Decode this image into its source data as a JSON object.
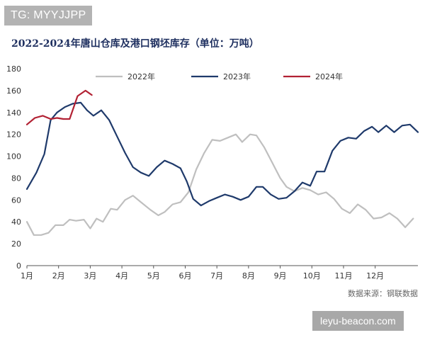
{
  "watermark_top": "TG: MYYJJPP",
  "watermark_bottom": "leyu-beacon.com",
  "chart_data": {
    "type": "line",
    "title": "2022-2024年唐山仓库及港口钢坯库存（单位：万吨）",
    "source": "数据来源：钢联数据",
    "xlabel": "",
    "ylabel": "",
    "xlim": [
      0,
      12
    ],
    "ylim": [
      0,
      180
    ],
    "yticks": [
      0,
      20,
      40,
      60,
      80,
      100,
      120,
      140,
      160,
      180
    ],
    "xticks": [
      {
        "label": "1月",
        "x": 0
      },
      {
        "label": "2月",
        "x": 1
      },
      {
        "label": "3月",
        "x": 2
      },
      {
        "label": "4月",
        "x": 3
      },
      {
        "label": "5月",
        "x": 4
      },
      {
        "label": "6月",
        "x": 5
      },
      {
        "label": "7月",
        "x": 6
      },
      {
        "label": "8月",
        "x": 7
      },
      {
        "label": "9月",
        "x": 8
      },
      {
        "label": "10月",
        "x": 9
      },
      {
        "label": "11月",
        "x": 10
      },
      {
        "label": "12月",
        "x": 11
      }
    ],
    "grid": false,
    "legend_position": "top",
    "series": [
      {
        "name": "2022年",
        "color": "#bfbfbf",
        "points": [
          [
            0,
            40
          ],
          [
            0.22,
            28
          ],
          [
            0.45,
            28
          ],
          [
            0.68,
            30
          ],
          [
            0.9,
            37
          ],
          [
            1.15,
            37
          ],
          [
            1.35,
            42
          ],
          [
            1.55,
            41
          ],
          [
            1.8,
            42
          ],
          [
            2.0,
            34
          ],
          [
            2.2,
            43
          ],
          [
            2.4,
            40
          ],
          [
            2.65,
            52
          ],
          [
            2.85,
            51
          ],
          [
            3.1,
            60
          ],
          [
            3.35,
            64
          ],
          [
            3.6,
            58
          ],
          [
            3.9,
            51
          ],
          [
            4.15,
            46
          ],
          [
            4.35,
            49
          ],
          [
            4.6,
            56
          ],
          [
            4.85,
            58
          ],
          [
            5.1,
            67
          ],
          [
            5.35,
            88
          ],
          [
            5.6,
            103
          ],
          [
            5.85,
            115
          ],
          [
            6.1,
            114
          ],
          [
            6.35,
            117
          ],
          [
            6.6,
            120
          ],
          [
            6.8,
            113
          ],
          [
            7.05,
            120
          ],
          [
            7.25,
            119
          ],
          [
            7.5,
            108
          ],
          [
            7.75,
            94
          ],
          [
            8.0,
            80
          ],
          [
            8.2,
            72
          ],
          [
            8.45,
            68
          ],
          [
            8.7,
            71
          ],
          [
            8.95,
            69
          ],
          [
            9.2,
            65
          ],
          [
            9.45,
            67
          ],
          [
            9.7,
            61
          ],
          [
            9.95,
            52
          ],
          [
            10.2,
            48
          ],
          [
            10.45,
            56
          ],
          [
            10.7,
            51
          ],
          [
            10.95,
            43
          ],
          [
            11.2,
            44
          ],
          [
            11.45,
            48
          ],
          [
            11.7,
            43
          ],
          [
            11.95,
            35
          ],
          [
            12.2,
            43
          ]
        ]
      },
      {
        "name": "2023年",
        "color": "#1f3a6b",
        "points": [
          [
            0,
            70
          ],
          [
            0.3,
            85
          ],
          [
            0.55,
            102
          ],
          [
            0.75,
            133
          ],
          [
            0.95,
            140
          ],
          [
            1.2,
            145
          ],
          [
            1.45,
            148
          ],
          [
            1.7,
            149
          ],
          [
            1.9,
            142
          ],
          [
            2.1,
            137
          ],
          [
            2.35,
            142
          ],
          [
            2.6,
            133
          ],
          [
            2.85,
            118
          ],
          [
            3.1,
            103
          ],
          [
            3.35,
            90
          ],
          [
            3.6,
            85
          ],
          [
            3.85,
            82
          ],
          [
            4.1,
            90
          ],
          [
            4.35,
            96
          ],
          [
            4.6,
            93
          ],
          [
            4.85,
            89
          ],
          [
            5.05,
            77
          ],
          [
            5.25,
            61
          ],
          [
            5.5,
            55
          ],
          [
            5.75,
            59
          ],
          [
            6.0,
            62
          ],
          [
            6.25,
            65
          ],
          [
            6.5,
            63
          ],
          [
            6.75,
            60
          ],
          [
            7.0,
            63
          ],
          [
            7.25,
            72
          ],
          [
            7.45,
            72
          ],
          [
            7.7,
            65
          ],
          [
            7.95,
            61
          ],
          [
            8.2,
            62
          ],
          [
            8.45,
            68
          ],
          [
            8.7,
            76
          ],
          [
            8.95,
            73
          ],
          [
            9.15,
            86
          ],
          [
            9.4,
            86
          ],
          [
            9.65,
            105
          ],
          [
            9.9,
            114
          ],
          [
            10.15,
            117
          ],
          [
            10.4,
            116
          ],
          [
            10.65,
            123
          ],
          [
            10.9,
            127
          ],
          [
            11.1,
            122
          ],
          [
            11.35,
            128
          ],
          [
            11.6,
            122
          ],
          [
            11.85,
            128
          ],
          [
            12.1,
            129
          ],
          [
            12.35,
            122
          ]
        ]
      },
      {
        "name": "2024年",
        "color": "#b22234",
        "points": [
          [
            0,
            129
          ],
          [
            0.25,
            135
          ],
          [
            0.5,
            137
          ],
          [
            0.75,
            134
          ],
          [
            0.95,
            135
          ],
          [
            1.15,
            134
          ],
          [
            1.35,
            134
          ],
          [
            1.6,
            155
          ],
          [
            1.85,
            160
          ],
          [
            2.05,
            156
          ]
        ]
      }
    ]
  }
}
